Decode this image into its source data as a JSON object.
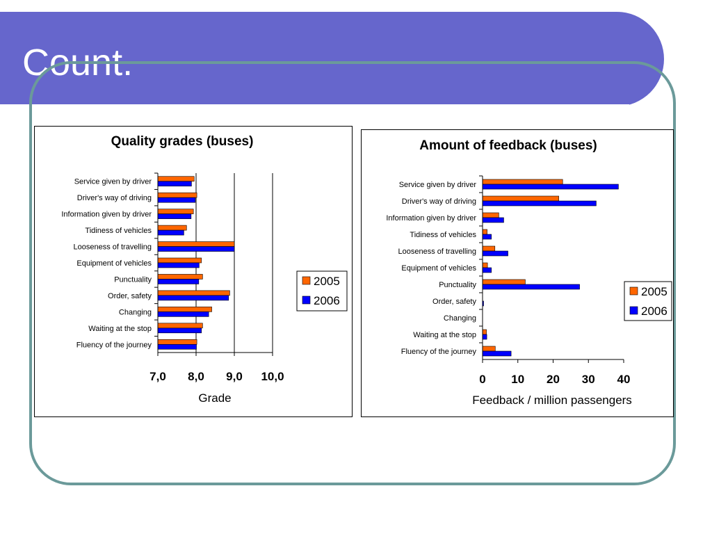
{
  "slide": {
    "title": "Count."
  },
  "chart_data": [
    {
      "type": "bar",
      "orientation": "horizontal",
      "title": "Quality grades (buses)",
      "xlabel": "Grade",
      "ylabel": "",
      "xlim": [
        7,
        10
      ],
      "ticks": [
        "7,0",
        "8,0",
        "9,0",
        "10,0"
      ],
      "grid": true,
      "legend_position": "right",
      "categories": [
        "Service given by driver",
        "Driver's way of driving",
        "Information given by driver",
        "Tidiness of vehicles",
        "Looseness of travelling",
        "Equipment of vehicles",
        "Punctuality",
        "Order, safety",
        "Changing",
        "Waiting at the stop",
        "Fluency of the journey"
      ],
      "series": [
        {
          "name": "2005",
          "color": "#ff6600",
          "values": [
            7.95,
            8.02,
            7.93,
            7.75,
            9.0,
            8.14,
            8.17,
            8.88,
            8.41,
            8.17,
            8.02
          ]
        },
        {
          "name": "2006",
          "color": "#0000ff",
          "values": [
            7.88,
            7.98,
            7.87,
            7.68,
            9.0,
            8.08,
            8.07,
            8.85,
            8.33,
            8.14,
            8.01
          ]
        }
      ]
    },
    {
      "type": "bar",
      "orientation": "horizontal",
      "title": "Amount of feedback (buses)",
      "xlabel": "Feedback / million passengers",
      "ylabel": "",
      "xlim": [
        0,
        40
      ],
      "ticks": [
        "0",
        "10",
        "20",
        "30",
        "40"
      ],
      "grid": false,
      "legend_position": "right",
      "categories": [
        "Service given by driver",
        "Driver's way of driving",
        "Information given by driver",
        "Tidiness of vehicles",
        "Looseness of travelling",
        "Equipment of vehicles",
        "Punctuality",
        "Order, safety",
        "Changing",
        "Waiting at the stop",
        "Fluency of the journey"
      ],
      "series": [
        {
          "name": "2005",
          "color": "#ff6600",
          "values": [
            22.7,
            21.6,
            4.6,
            1.3,
            3.5,
            1.4,
            12.1,
            0.0,
            0.0,
            1.1,
            3.6
          ]
        },
        {
          "name": "2006",
          "color": "#0000ff",
          "values": [
            38.5,
            32.2,
            6.0,
            2.5,
            7.2,
            2.5,
            27.5,
            0.3,
            0.0,
            1.2,
            8.1
          ]
        }
      ]
    }
  ]
}
